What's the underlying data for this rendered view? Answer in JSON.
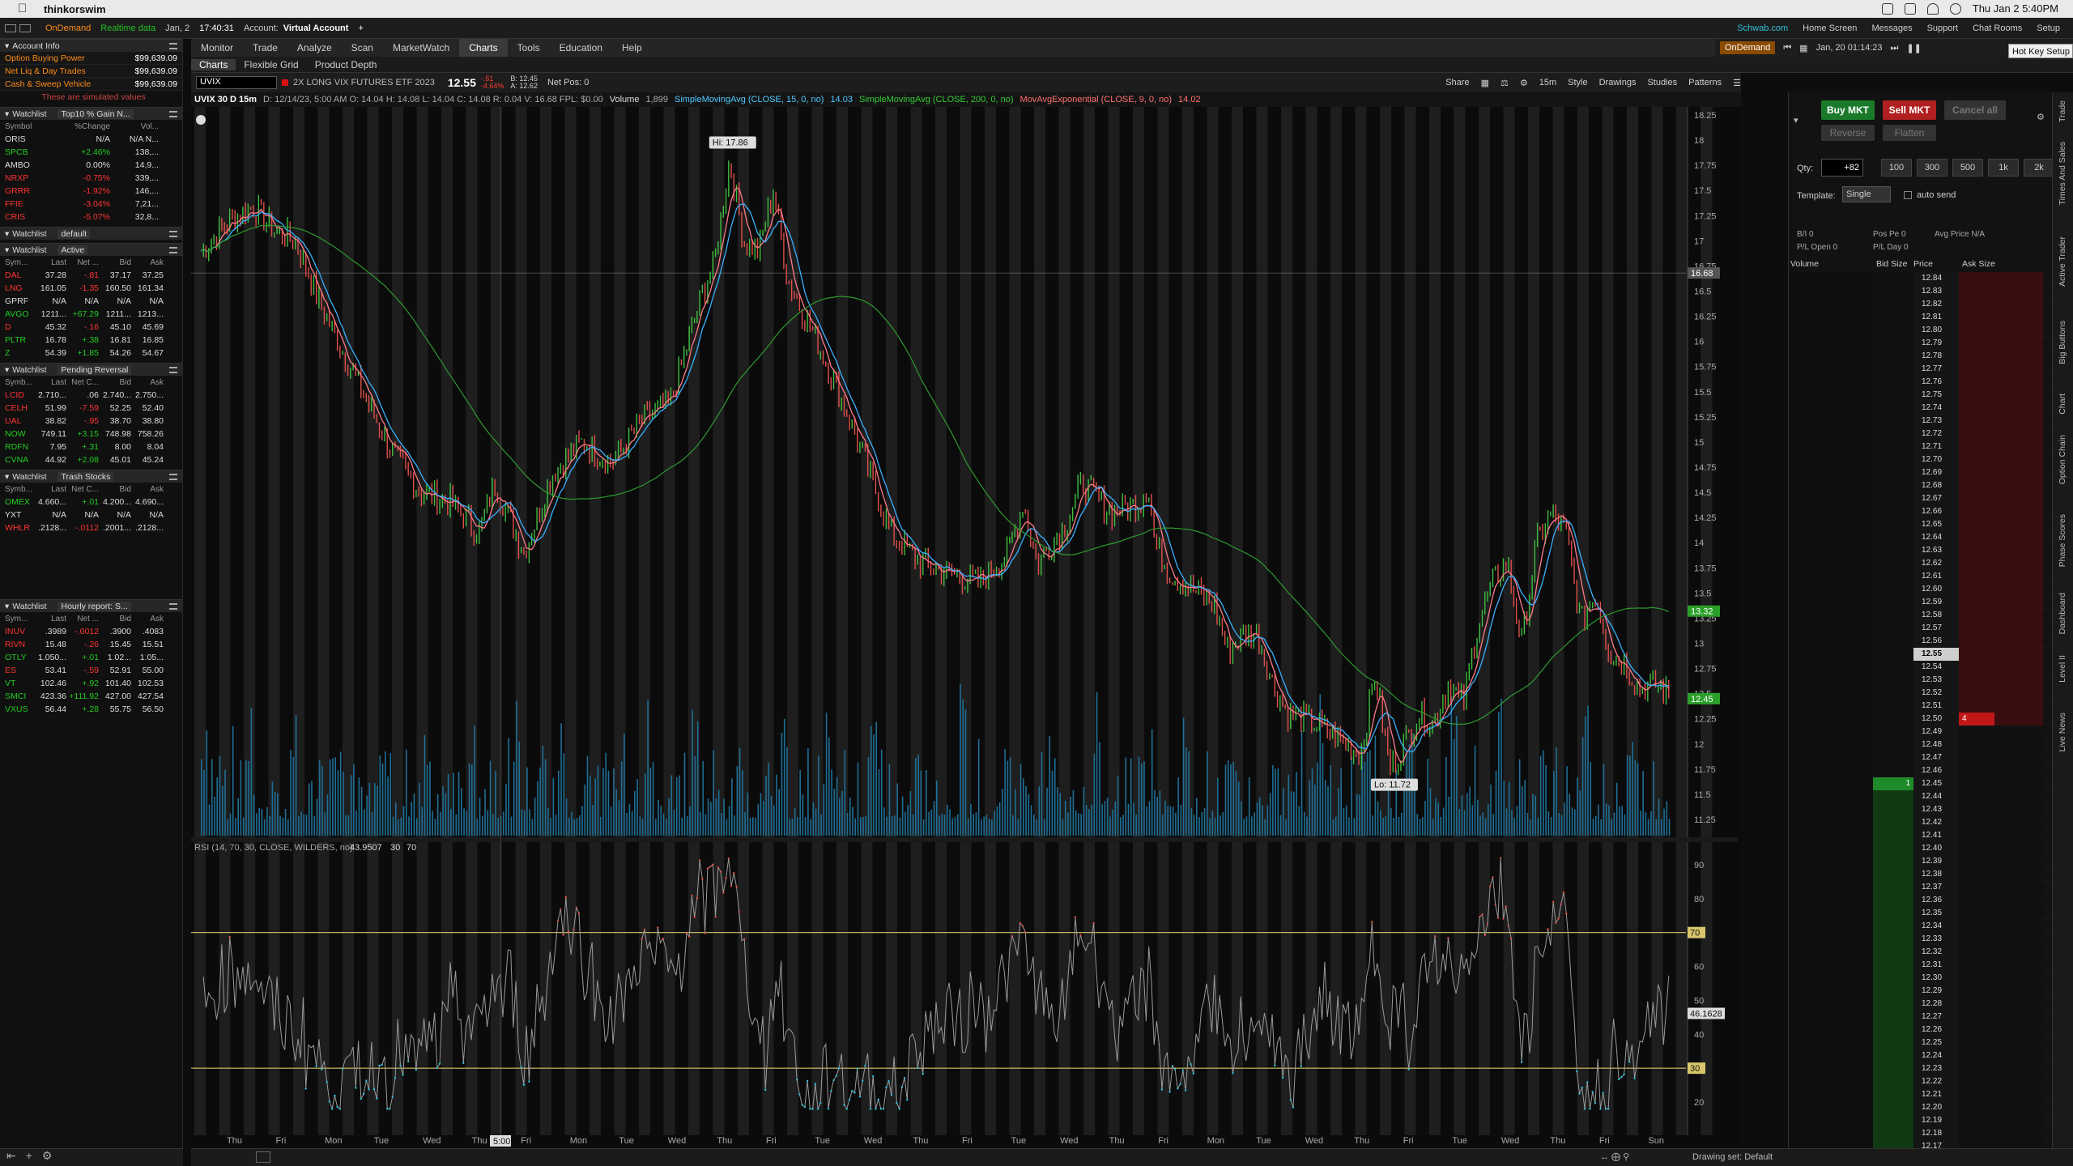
{
  "menubar": {
    "app": "thinkorswim",
    "datetime": "Thu Jan 2  5:40PM"
  },
  "status": {
    "ondemand": "OnDemand",
    "realtime": "Realtime data",
    "date": "Jan, 2",
    "time": "17:40:31",
    "account_label": "Account:",
    "account": "Virtual Account",
    "schwab": "Schwab.com",
    "home": "Home Screen",
    "messages": "Messages",
    "support": "Support",
    "chatrooms": "Chat Rooms",
    "setup": "Setup",
    "hotkey": "Hot Key Setup"
  },
  "nav": {
    "tabs": [
      "Monitor",
      "Trade",
      "Analyze",
      "Scan",
      "MarketWatch",
      "Charts",
      "Tools",
      "Education",
      "Help"
    ],
    "active": "Charts"
  },
  "subnav": {
    "tabs": [
      "Charts",
      "Flexible Grid",
      "Product Depth"
    ]
  },
  "ondemand_bar": {
    "label": "OnDemand",
    "date": "Jan, 20 01:14:23"
  },
  "account_info": {
    "title": "Account Info",
    "rows": [
      {
        "label": "Option Buying Power",
        "value": "$99,639.09"
      },
      {
        "label": "Net Liq & Day Trades",
        "value": "$99,639.09"
      },
      {
        "label": "Cash & Sweep Vehicle",
        "value": "$99,639.09"
      }
    ],
    "note": "These are simulated values"
  },
  "watchlists": [
    {
      "title": "Watchlist",
      "name": "Top10 % Gain N...",
      "cols": [
        "Symbol",
        "%Change",
        "Vol..."
      ],
      "rows": [
        [
          "ORIS",
          "N/A",
          "N/A N..."
        ],
        [
          "SPCB",
          "+2.46%",
          "138,..."
        ],
        [
          "AMBO",
          "0.00%",
          "14,9..."
        ],
        [
          "NRXP",
          "-0.75%",
          "339,..."
        ],
        [
          "GRRR",
          "-1.92%",
          "146,..."
        ],
        [
          "FFIE",
          "-3.04%",
          "7,21..."
        ],
        [
          "CRIS",
          "-5.07%",
          "32,8..."
        ]
      ]
    },
    {
      "title": "Watchlist",
      "name": "default",
      "cols": [],
      "rows": []
    },
    {
      "title": "Watchlist",
      "name": "Active",
      "cols": [
        "Sym...",
        "Last",
        "Net ...",
        "Bid",
        "Ask"
      ],
      "rows": [
        [
          "DAL",
          "37.28",
          "-.81",
          "37.17",
          "37.25"
        ],
        [
          "LNG",
          "161.05",
          "-1.35",
          "160.50",
          "161.34"
        ],
        [
          "GPRF",
          "N/A",
          "N/A",
          "N/A",
          "N/A"
        ],
        [
          "AVGO",
          "1211...",
          "+67.29",
          "1211...",
          "1213..."
        ],
        [
          "D",
          "45.32",
          "-.16",
          "45.10",
          "45.69"
        ],
        [
          "PLTR",
          "16.78",
          "+.38",
          "16.81",
          "16.85"
        ],
        [
          "Z",
          "54.39",
          "+1.85",
          "54.26",
          "54.67"
        ]
      ]
    },
    {
      "title": "Watchlist",
      "name": "Pending Reversal",
      "cols": [
        "Symb...",
        "Last",
        "Net C...",
        "Bid",
        "Ask"
      ],
      "rows": [
        [
          "LCID",
          "2.710...",
          ".06",
          "2.740...",
          "2.750..."
        ],
        [
          "CELH",
          "51.99",
          "-7.59",
          "52.25",
          "52.40"
        ],
        [
          "UAL",
          "38.82",
          "-.95",
          "38.70",
          "38.80"
        ],
        [
          "NOW",
          "749.11",
          "+3.15",
          "748.98",
          "758.26"
        ],
        [
          "RDFN",
          "7.95",
          "+.31",
          "8.00",
          "8.04"
        ],
        [
          "CVNA",
          "44.92",
          "+2.08",
          "45.01",
          "45.24"
        ]
      ]
    },
    {
      "title": "Watchlist",
      "name": "Trash Stocks",
      "cols": [
        "Symb...",
        "Last",
        "Net C...",
        "Bid",
        "Ask"
      ],
      "rows": [
        [
          "OMEX",
          "4.660...",
          "+.01",
          "4.200...",
          "4.690..."
        ],
        [
          "YXT",
          "N/A",
          "N/A",
          "N/A",
          "N/A"
        ],
        [
          "WHLR",
          ".2128...",
          "-.0112",
          ".2001...",
          ".2128..."
        ]
      ]
    },
    {
      "title": "Watchlist",
      "name": "Hourly report: S...",
      "cols": [
        "Sym...",
        "Last",
        "Net ...",
        "Bid",
        "Ask"
      ],
      "rows": [
        [
          "INUV",
          ".3989",
          "-.0012",
          ".3900",
          ".4083"
        ],
        [
          "RIVN",
          "15.48",
          "-.26",
          "15.45",
          "15.51"
        ],
        [
          "OTLY",
          "1.050...",
          "+.01",
          "1.02...",
          "1.05..."
        ],
        [
          "ES",
          "53.41",
          "-.59",
          "52.91",
          "55.00"
        ],
        [
          "VT",
          "102.46",
          "+.92",
          "101.40",
          "102.53"
        ],
        [
          "SMCI",
          "423.36",
          "+111.92",
          "427.00",
          "427.54"
        ],
        [
          "VXUS",
          "56.44",
          "+.28",
          "55.75",
          "56.50"
        ]
      ]
    }
  ],
  "chart_toolbar": {
    "symbol": "UVIX",
    "desc": "2X LONG VIX FUTURES ETF 2023",
    "price": "12.55",
    "chg": "-.61",
    "chg_pct": "-4.64%",
    "bid": "B: 12.45",
    "ask": "A: 12.62",
    "netpos": "Net Pos: 0",
    "share": "Share",
    "timeframe": "15m",
    "style": "Style",
    "drawings": "Drawings",
    "studies": "Studies",
    "patterns": "Patterns"
  },
  "study_row": {
    "title": "UVIX 30 D 15m",
    "ohlc": "D: 12/14/23, 5:00 AM  O: 14.04  H: 14.08  L: 14.04  C: 14.08  R: 0.04  V: 16.68  FPL: $0.00",
    "volume": "Volume",
    "vol_val": "1,899",
    "sma15": "SimpleMovingAvg (CLOSE, 15, 0, no)",
    "sma15_val": "14.03",
    "sma200": "SimpleMovingAvg (CLOSE, 200, 0, no)",
    "ema": "MovAvgExponential (CLOSE, 9, 0, no)",
    "ema_val": "14.02"
  },
  "chart": {
    "hi_label": "Hi: 17.86",
    "lo_label": "Lo: 11.72",
    "yticks": [
      "18.25",
      "18",
      "17.75",
      "17.5",
      "17.25",
      "17",
      "16.75",
      "16.5",
      "16.25",
      "16",
      "15.75",
      "15.5",
      "15.25",
      "15",
      "14.75",
      "14.5",
      "14.25",
      "14",
      "13.75",
      "13.5",
      "13.25",
      "13",
      "12.75",
      "12.5",
      "12.25",
      "12",
      "11.75",
      "11.5",
      "11.25"
    ],
    "crosshair_label": "16.68",
    "price_tag": "13.32",
    "last_tag": "12.45",
    "rsi_title": "RSI (14, 70, 30, CLOSE, WILDERS, no)",
    "rsi_val": "43.9507",
    "rsi_lo": "30",
    "rsi_hi": "70",
    "rsi_ticks": [
      "90",
      "80",
      "70",
      "60",
      "50",
      "40",
      "30",
      "20"
    ],
    "rsi_tag": "46.1628",
    "xlabels": [
      "Thu",
      "Fri",
      "Mon",
      "Tue",
      "Wed",
      "Thu",
      "Fri",
      "Mon",
      "Tue",
      "Wed",
      "Thu",
      "Fri",
      "Tue",
      "Wed",
      "Thu",
      "Fri",
      "Tue",
      "Wed",
      "Thu",
      "Fri",
      "Mon",
      "Tue",
      "Wed",
      "Thu",
      "Fri",
      "Tue",
      "Wed",
      "Thu",
      "Fri",
      "Sun"
    ],
    "x_time_tag": "5:00",
    "drawing_set": "Drawing set: Default"
  },
  "trade": {
    "buy": "Buy MKT",
    "sell": "Sell MKT",
    "cancel": "Cancel all",
    "reverse": "Reverse",
    "flatten": "Flatten",
    "qty_label": "Qty:",
    "qty": "+82",
    "qty_btns": [
      "100",
      "300",
      "500",
      "1k",
      "2k"
    ],
    "template_label": "Template:",
    "template": "Single",
    "autosend": "auto send",
    "stats": [
      "B/I 0",
      "Pos Pe 0",
      "Avg Price N/A",
      "P/L Open 0",
      "P/L Day 0"
    ],
    "cols": [
      "Volume",
      "Bid Size",
      "Price",
      "Ask Size"
    ],
    "prices": [
      "12.84",
      "12.83",
      "12.82",
      "12.81",
      "12.80",
      "12.79",
      "12.78",
      "12.77",
      "12.76",
      "12.75",
      "12.74",
      "12.73",
      "12.72",
      "12.71",
      "12.70",
      "12.69",
      "12.68",
      "12.67",
      "12.66",
      "12.65",
      "12.64",
      "12.63",
      "12.62",
      "12.61",
      "12.60",
      "12.59",
      "12.58",
      "12.57",
      "12.56",
      "12.55",
      "12.54",
      "12.53",
      "12.52",
      "12.51",
      "12.50",
      "12.49",
      "12.48",
      "12.47",
      "12.46",
      "12.45",
      "12.44",
      "12.43",
      "12.42",
      "12.41",
      "12.40",
      "12.39",
      "12.38",
      "12.37",
      "12.36",
      "12.35",
      "12.34",
      "12.33",
      "12.32",
      "12.31",
      "12.30",
      "12.29",
      "12.28",
      "12.27",
      "12.26",
      "12.25",
      "12.24",
      "12.23",
      "12.22",
      "12.21",
      "12.20",
      "12.19",
      "12.18",
      "12.17"
    ],
    "ask_size_at_1250": "4",
    "bid_size_at_1245": "1"
  },
  "sidetabs": [
    "Trade",
    "Times And Sales",
    "Active Trader",
    "Big Buttons",
    "Chart",
    "Option Chain",
    "Phase Scores",
    "Dashboard",
    "Level II",
    "Live News"
  ]
}
